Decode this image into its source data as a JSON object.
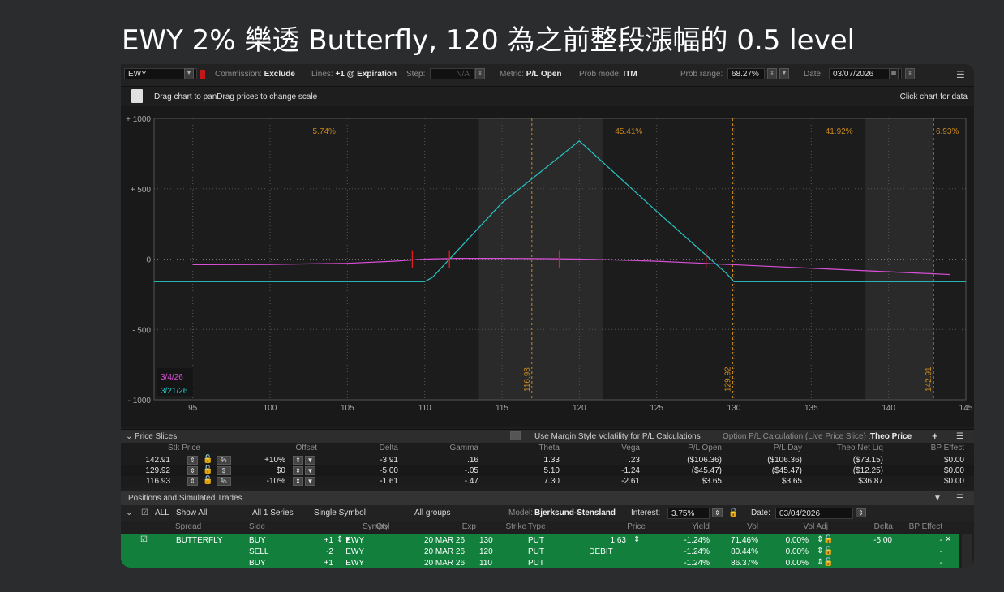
{
  "headline": "EWY 2% 樂透 Butterfly, 120 為之前整段漲幅的 0.5 level",
  "toolbar": {
    "symbol": "EWY",
    "commission_label": "Commission:",
    "commission_value": "Exclude",
    "lines_label": "Lines:",
    "lines_value": "+1 @ Expiration",
    "step_label": "Step:",
    "step_value": "N/A",
    "metric_label": "Metric:",
    "metric_value": "P/L Open",
    "prob_mode_label": "Prob mode:",
    "prob_mode_value": "ITM",
    "prob_range_label": "Prob range:",
    "prob_range_value": "68.27%",
    "date_label": "Date:",
    "date_value": "03/07/2026"
  },
  "hints": {
    "left": "Drag chart to panDrag prices to change scale",
    "right": "Click chart for data"
  },
  "chart_data": {
    "type": "line",
    "title": "",
    "xlabel": "",
    "ylabel": "",
    "xlim": [
      92.5,
      145
    ],
    "ylim": [
      -1000,
      1000
    ],
    "x_ticks": [
      "95",
      "100",
      "105",
      "110",
      "115",
      "120",
      "125",
      "130",
      "135",
      "140",
      "145"
    ],
    "x_tick_values": [
      95,
      100,
      105,
      110,
      115,
      120,
      125,
      130,
      135,
      140,
      145
    ],
    "y_ticks": [
      "+ 1000",
      "+ 500",
      "0",
      "- 500",
      "- 1000"
    ],
    "y_tick_values": [
      1000,
      500,
      0,
      -500,
      -1000
    ],
    "grid": true,
    "legend_position": "bottom-left",
    "series": [
      {
        "name": "3/4/26",
        "color": "#d94fd9",
        "x": [
          95,
          100,
          105,
          108,
          110,
          112,
          115,
          118,
          120,
          122,
          125,
          127,
          130,
          133,
          136,
          139,
          142,
          144
        ],
        "y": [
          -40,
          -38,
          -30,
          -15,
          0,
          5,
          5,
          3,
          0,
          -5,
          -15,
          -25,
          -40,
          -55,
          -70,
          -85,
          -100,
          -110
        ]
      },
      {
        "name": "3/21/26",
        "color": "#27c7c7",
        "x": [
          92.5,
          110,
          110.5,
          115,
          120,
          125,
          129.5,
          130,
          145
        ],
        "y": [
          -160,
          -160,
          -130,
          400,
          840,
          340,
          -100,
          -160,
          -160
        ]
      }
    ],
    "prob_bands": [
      "5.74%",
      "45.41%",
      "41.92%",
      "6.93%"
    ],
    "price_lines": [
      {
        "label": "116.93",
        "x": 116.93
      },
      {
        "label": "129.92",
        "x": 129.92
      },
      {
        "label": "142.91",
        "x": 142.91
      }
    ],
    "red_markers_x": [
      109.2,
      111.6,
      118.7,
      128.2
    ],
    "shaded_ranges": [
      [
        92.5,
        113.5
      ],
      [
        121.5,
        138.5
      ],
      [
        142.9,
        145
      ]
    ]
  },
  "price_slices": {
    "section_title": "Price Slices",
    "margin_vol_label": "Use Margin Style Volatility for P/L Calculations",
    "option_calc_label": "Option P/L Calculation (Live Price Slice) :",
    "option_calc_value": "Theo Price",
    "headers": [
      "Stk Price",
      "Offset",
      "Delta",
      "Gamma",
      "Theta",
      "Vega",
      "P/L Open",
      "P/L Day",
      "Theo Net Liq",
      "BP Effect"
    ],
    "rows": [
      {
        "stk": "142.91",
        "mode": "%",
        "offset": "+10%",
        "delta": "-3.91",
        "gamma": ".16",
        "theta": "1.33",
        "vega": ".23",
        "pl_open": "($106.36)",
        "pl_day": "($106.36)",
        "theo": "($73.15)",
        "bp": "$0.00"
      },
      {
        "stk": "129.92",
        "mode": "$",
        "offset": "$0",
        "delta": "-5.00",
        "gamma": "-.05",
        "theta": "5.10",
        "vega": "-1.24",
        "pl_open": "($45.47)",
        "pl_day": "($45.47)",
        "theo": "($12.25)",
        "bp": "$0.00"
      },
      {
        "stk": "116.93",
        "mode": "%",
        "offset": "-10%",
        "delta": "-1.61",
        "gamma": "-.47",
        "theta": "7.30",
        "vega": "-2.61",
        "pl_open": "$3.65",
        "pl_day": "$3.65",
        "theo": "$36.87",
        "bp": "$0.00"
      }
    ]
  },
  "positions": {
    "section_title": "Positions and Simulated Trades",
    "filter_all": "ALL",
    "show_all": "Show All",
    "series": "All 1 Series",
    "symbol_mode": "Single Symbol",
    "groups": "All groups",
    "model_label": "Model:",
    "model_value": "Bjerksund-Stensland",
    "interest_label": "Interest:",
    "interest_value": "3.75%",
    "date_label": "Date:",
    "date_value": "03/04/2026",
    "headers": [
      "Spread",
      "Side",
      "Qty",
      "Symbol",
      "Exp",
      "Strike",
      "Type",
      "Price",
      "Yield",
      "Vol",
      "Vol Adj",
      "Delta",
      "BP Effect"
    ],
    "rows": [
      {
        "spread": "BUTTERFLY",
        "side": "BUY",
        "qty": "+1",
        "symbol": "EWY",
        "exp": "20 MAR 26",
        "strike": "130",
        "type": "PUT",
        "price": "1.63",
        "yield": "-1.24%",
        "vol": "71.46%",
        "voladj": "0.00%",
        "delta": "-5.00",
        "bp": "-"
      },
      {
        "spread": "",
        "side": "SELL",
        "qty": "-2",
        "symbol": "EWY",
        "exp": "20 MAR 26",
        "strike": "120",
        "type": "PUT",
        "price": "DEBIT",
        "yield": "-1.24%",
        "vol": "80.44%",
        "voladj": "0.00%",
        "delta": "",
        "bp": "-"
      },
      {
        "spread": "",
        "side": "BUY",
        "qty": "+1",
        "symbol": "EWY",
        "exp": "20 MAR 26",
        "strike": "110",
        "type": "PUT",
        "price": "",
        "yield": "-1.24%",
        "vol": "86.37%",
        "voladj": "0.00%",
        "delta": "",
        "bp": "-"
      }
    ]
  }
}
